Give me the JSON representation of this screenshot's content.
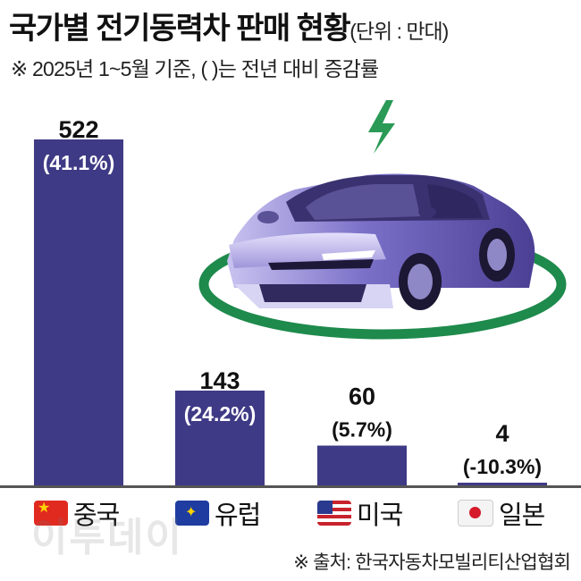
{
  "header": {
    "title": "국가별 전기동력차 판매 현황",
    "unit": "(단위 : 만대)",
    "subtitle": "※ 2025년 1~5월 기준, ( )는 전년 대비 증감률"
  },
  "chart_data": {
    "type": "bar",
    "title": "국가별 전기동력차 판매 현황",
    "unit": "만대",
    "categories": [
      "중국",
      "유럽",
      "미국",
      "일본"
    ],
    "values": [
      522,
      143,
      60,
      4
    ],
    "growth_labels": [
      "(41.1%)",
      "(24.2%)",
      "(5.7%)",
      "(-10.3%)"
    ],
    "value_labels": [
      "522",
      "143",
      "60",
      "4"
    ],
    "ylim": [
      0,
      522
    ],
    "grid": false,
    "bar_color": "#3f3a85"
  },
  "countries": [
    {
      "label": "중국",
      "flag": "china-flag-icon"
    },
    {
      "label": "유럽",
      "flag": "eu-flag-icon"
    },
    {
      "label": "미국",
      "flag": "us-flag-icon"
    },
    {
      "label": "일본",
      "flag": "japan-flag-icon"
    }
  ],
  "illustration": {
    "car": "electric-car-icon",
    "bolt": "lightning-bolt-icon",
    "ring_color": "#1e8a4c"
  },
  "watermark": "이투데이",
  "source": "※ 출처: 한국자동차모빌리티산업협회"
}
